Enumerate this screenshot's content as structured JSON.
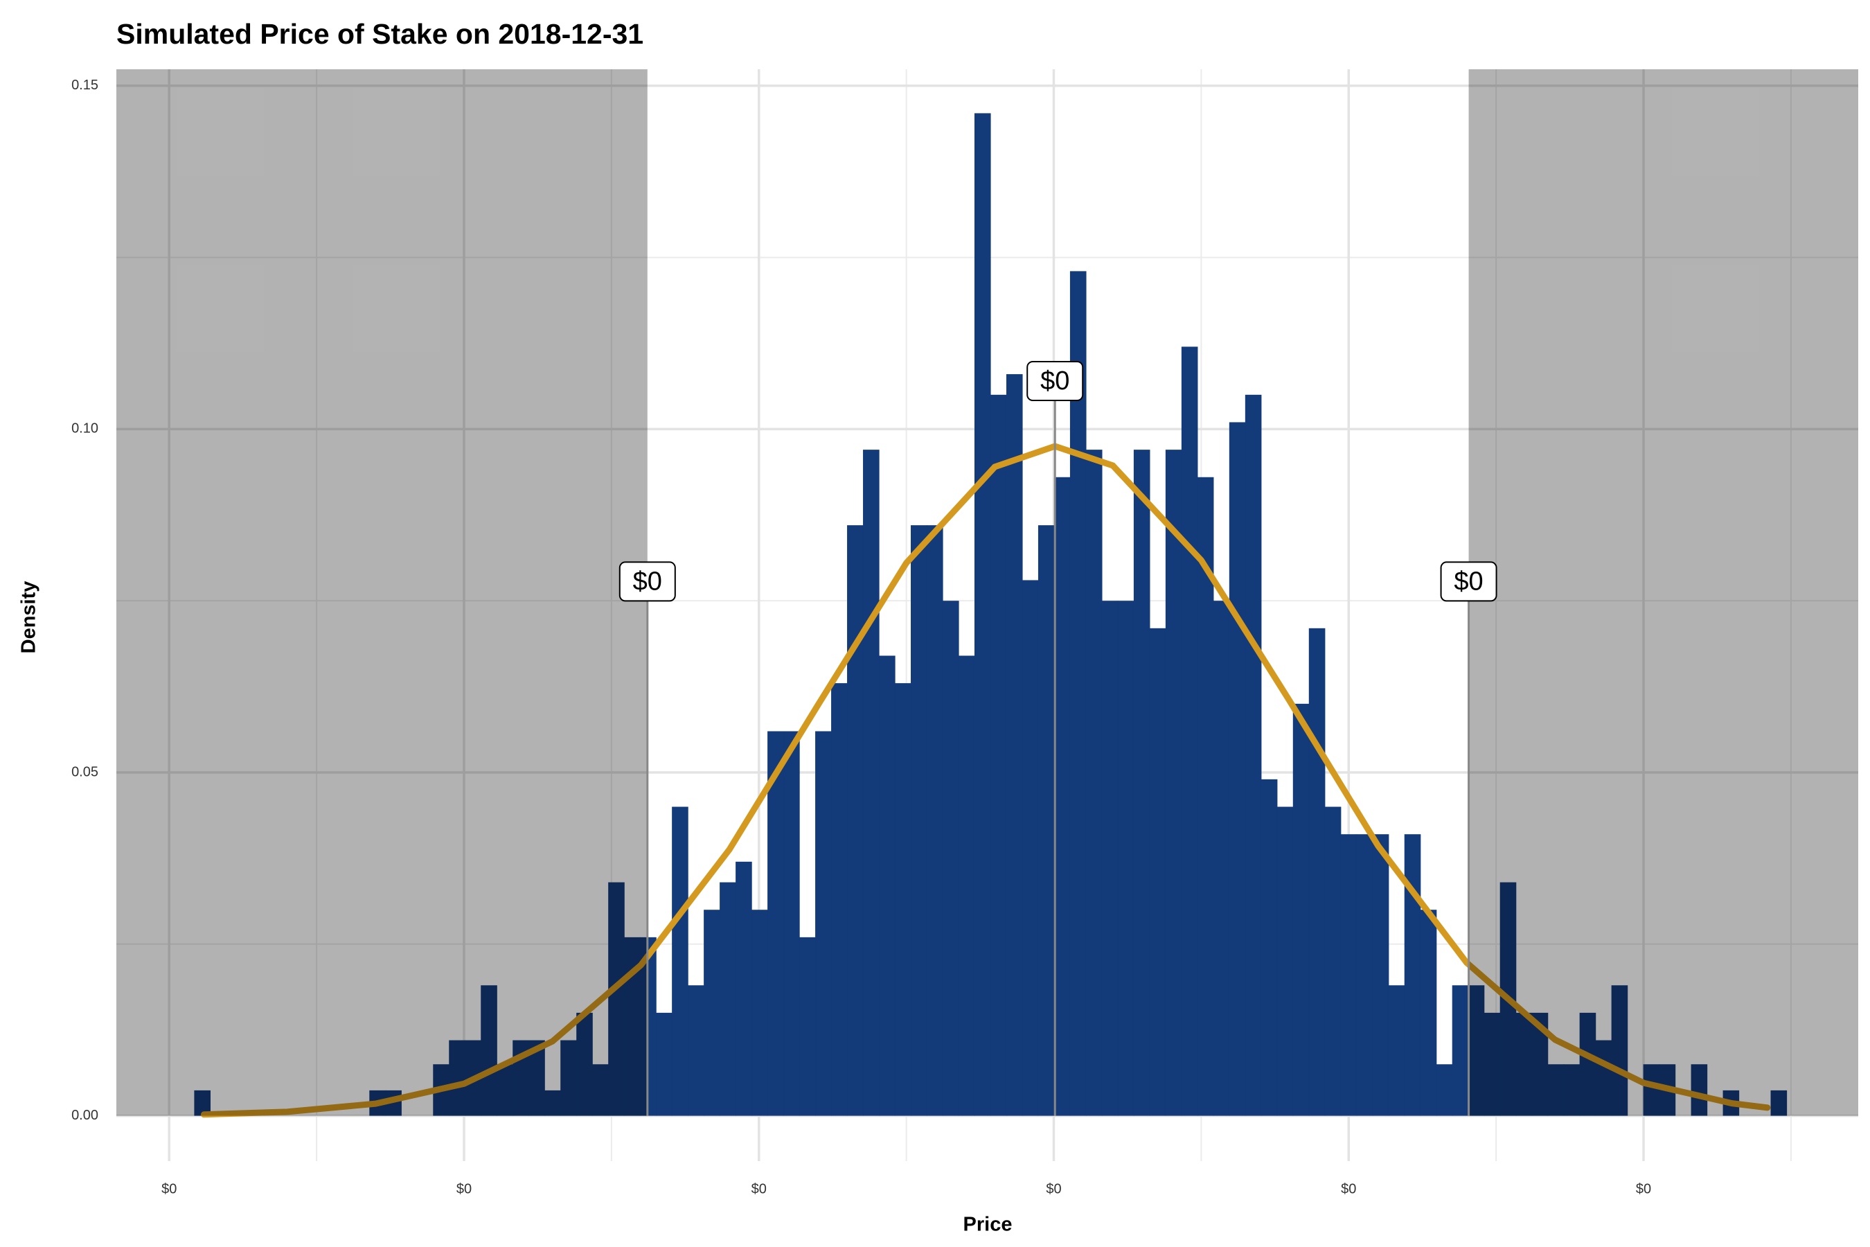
{
  "chart_data": {
    "type": "histogram",
    "title": "Simulated Price of Stake on 2018-12-31",
    "xlabel": "Price",
    "ylabel": "Density",
    "bins": [
      0.085,
      0.139,
      0.193,
      0.247,
      0.301,
      0.355,
      0.409,
      0.463,
      0.517,
      0.571,
      0.625,
      0.679,
      0.733,
      0.787,
      0.841,
      0.895,
      0.949,
      1.003,
      1.057,
      1.111,
      1.165,
      1.219,
      1.273,
      1.327,
      1.381,
      1.435,
      1.489,
      1.543,
      1.597,
      1.651,
      1.705,
      1.759,
      1.813,
      1.867,
      1.921,
      1.975,
      2.029,
      2.083,
      2.137,
      2.191,
      2.245,
      2.299,
      2.353,
      2.407,
      2.461,
      2.515,
      2.569,
      2.623,
      2.677,
      2.731,
      2.785,
      2.839,
      2.893,
      2.947,
      3.001,
      3.055,
      3.109,
      3.163,
      3.217,
      3.271,
      3.325,
      3.379,
      3.433,
      3.487,
      3.541,
      3.595,
      3.649,
      3.703,
      3.757,
      3.811,
      3.865,
      3.919,
      3.973,
      4.027,
      4.081,
      4.135,
      4.189,
      4.243,
      4.297,
      4.351,
      4.405,
      4.459,
      4.513,
      4.567,
      4.621,
      4.675,
      4.729,
      4.783,
      4.837,
      4.891,
      4.945,
      4.999,
      5.053,
      5.107,
      5.161,
      5.215,
      5.269,
      5.323,
      5.377,
      5.431,
      5.485
    ],
    "values": [
      0.0037,
      0,
      0,
      0,
      0,
      0,
      0,
      0,
      0,
      0,
      0,
      0.0037,
      0.0037,
      0,
      0,
      0.0075,
      0.011,
      0.011,
      0.019,
      0.0075,
      0.011,
      0.011,
      0.0037,
      0.011,
      0.015,
      0.0075,
      0.034,
      0.026,
      0.026,
      0.015,
      0.045,
      0.019,
      0.03,
      0.034,
      0.037,
      0.03,
      0.056,
      0.056,
      0.026,
      0.056,
      0.063,
      0.086,
      0.097,
      0.067,
      0.063,
      0.086,
      0.086,
      0.075,
      0.067,
      0.146,
      0.105,
      0.108,
      0.078,
      0.086,
      0.093,
      0.123,
      0.097,
      0.075,
      0.075,
      0.097,
      0.071,
      0.097,
      0.112,
      0.093,
      0.075,
      0.101,
      0.105,
      0.049,
      0.045,
      0.06,
      0.071,
      0.045,
      0.041,
      0.041,
      0.041,
      0.019,
      0.041,
      0.03,
      0.0075,
      0.019,
      0.019,
      0.015,
      0.034,
      0.015,
      0.015,
      0.0075,
      0.0075,
      0.015,
      0.011,
      0.019,
      0,
      0.0075,
      0.0075,
      0,
      0.0075,
      0,
      0.0037,
      0,
      0,
      0.0037
    ],
    "color": "#133a79",
    "curve": {
      "color": "#d4991f",
      "x": [
        0.118,
        0.4,
        0.7,
        1.0,
        1.3,
        1.6,
        1.9,
        2.2,
        2.5,
        2.8,
        3.004,
        3.2,
        3.5,
        3.8,
        4.1,
        4.4,
        4.7,
        5.0,
        5.3,
        5.42
      ],
      "values": [
        0.00018,
        0.00058,
        0.00176,
        0.00467,
        0.01084,
        0.02195,
        0.03878,
        0.0598,
        0.0805,
        0.0945,
        0.0975,
        0.0947,
        0.0809,
        0.0604,
        0.0393,
        0.0223,
        0.01107,
        0.00479,
        0.00181,
        0.00118
      ]
    },
    "shade_below": 1.622,
    "shade_above": 4.407,
    "annotations": [
      {
        "x": 1.622,
        "y": 0.0778,
        "label": "$0"
      },
      {
        "x": 3.004,
        "y": 0.107,
        "label": "$0"
      },
      {
        "x": 4.407,
        "y": 0.0778,
        "label": "$0"
      }
    ],
    "xlim": [
      -0.179,
      5.728
    ],
    "ylim": [
      -0.0066,
      0.1524
    ],
    "xticks": [
      {
        "value": 0,
        "label": "$0"
      },
      {
        "value": 1,
        "label": "$0"
      },
      {
        "value": 2,
        "label": "$0"
      },
      {
        "value": 3,
        "label": "$0"
      },
      {
        "value": 4,
        "label": "$0"
      },
      {
        "value": 5,
        "label": "$0"
      }
    ],
    "x_minor_ticks": [
      0.5,
      1.5,
      2.5,
      3.5,
      4.5,
      5.5
    ],
    "yticks": [
      {
        "value": 0,
        "label": "0.00"
      },
      0.05,
      {
        "value": 0.1,
        "label": "0.10"
      },
      0.15
    ],
    "y_minor_ticks": [
      0.025,
      0.075,
      0.125
    ],
    "grid": true
  }
}
